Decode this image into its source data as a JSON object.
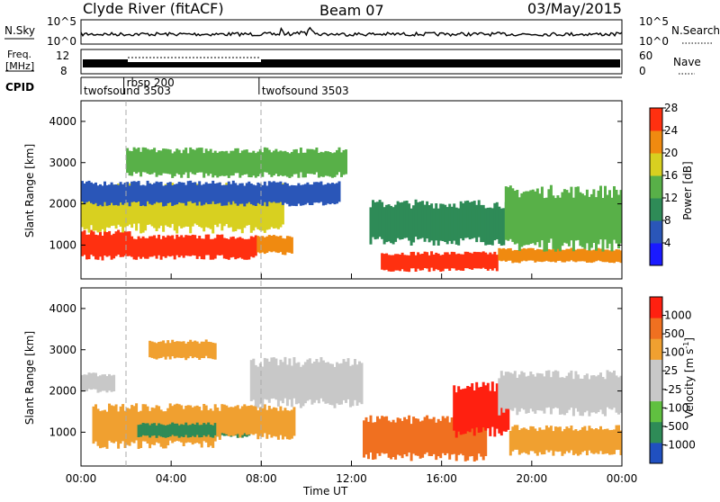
{
  "header": {
    "station": "Clyde River (fitACF)",
    "beam": "Beam 07",
    "date": "03/May/2015"
  },
  "noise_panel": {
    "left_label": "N.Sky",
    "right_label": "N.Search",
    "left_ticks": [
      "10^5",
      "10^0"
    ],
    "right_ticks": [
      "10^5",
      "10^0"
    ]
  },
  "freq_panel": {
    "left_label_top": "Freq.",
    "left_label_bottom": "[MHz]",
    "left_ticks": [
      "12",
      "8"
    ],
    "right_label": "Nave",
    "right_ticks": [
      "60",
      "0"
    ]
  },
  "cpid_panel": {
    "label": "CPID",
    "segments": [
      {
        "label": "twofsound 3503",
        "start_hour": 0,
        "end_hour": 1.9
      },
      {
        "label": "rbsp 200",
        "start_hour": 1.9,
        "end_hour": 7.9
      },
      {
        "label": "twofsound 3503",
        "start_hour": 7.9,
        "end_hour": 24
      }
    ]
  },
  "range_axis": {
    "label": "Slant Range [km]",
    "ticks": [
      "1000",
      "2000",
      "3000",
      "4000"
    ],
    "range_km": [
      180,
      4500
    ]
  },
  "time_axis": {
    "label": "Time UT",
    "ticks": [
      "00:00",
      "04:00",
      "08:00",
      "12:00",
      "16:00",
      "20:00",
      "00:00"
    ],
    "range_hours": [
      0,
      24
    ]
  },
  "power_colorbar": {
    "label": "Power [dB]",
    "ticks": [
      "4",
      "8",
      "12",
      "16",
      "20",
      "24",
      "28"
    ],
    "colors": [
      "#1a1aff",
      "#2a56b8",
      "#2e8b57",
      "#58b048",
      "#d8d020",
      "#f08a10",
      "#ff3010"
    ]
  },
  "velocity_colorbar": {
    "label": "Velocity [m s",
    "label_superscript": "-1",
    "label_close": "]",
    "ticks": [
      "1000",
      "500",
      "100",
      "25",
      "-25",
      "-100",
      "-500",
      "-1000"
    ],
    "colors": [
      "#2050c0",
      "#2e8b57",
      "#60c040",
      "#c8c8c8",
      "#c8c8c8",
      "#f0a030",
      "#f07020",
      "#ff2010"
    ]
  },
  "chart_data": {
    "type": "heatmap",
    "x_unit": "hours UT",
    "y_unit": "km",
    "power_features": [
      {
        "t0": 0,
        "t1": 2.2,
        "r0": 700,
        "r1": 1300,
        "level": 6
      },
      {
        "t0": 2.2,
        "t1": 7.8,
        "r0": 700,
        "r1": 1200,
        "level": 6
      },
      {
        "t0": 7.8,
        "t1": 9.4,
        "r0": 800,
        "r1": 1200,
        "level": 5
      },
      {
        "t0": 13.3,
        "t1": 18.5,
        "r0": 400,
        "r1": 800,
        "level": 6
      },
      {
        "t0": 18.5,
        "t1": 24,
        "r0": 600,
        "r1": 900,
        "level": 5
      },
      {
        "t0": 0,
        "t1": 9,
        "r0": 1400,
        "r1": 2400,
        "level": 4
      },
      {
        "t0": 0,
        "t1": 11.5,
        "r0": 2000,
        "r1": 2500,
        "level": 1
      },
      {
        "t0": 2,
        "t1": 11.8,
        "r0": 2700,
        "r1": 3300,
        "level": 3
      },
      {
        "t0": 12.8,
        "t1": 19,
        "r0": 1100,
        "r1": 2000,
        "level": 2
      },
      {
        "t0": 18.8,
        "t1": 24,
        "r0": 1000,
        "r1": 2300,
        "level": 3
      }
    ],
    "velocity_features": [
      {
        "t0": 0,
        "t1": 1.5,
        "r0": 2000,
        "r1": 2400,
        "level": 3
      },
      {
        "t0": 0.5,
        "t1": 6,
        "r0": 700,
        "r1": 1600,
        "level": 5
      },
      {
        "t0": 2.5,
        "t1": 7.5,
        "r0": 900,
        "r1": 1200,
        "level": 1
      },
      {
        "t0": 6,
        "t1": 9.5,
        "r0": 900,
        "r1": 1600,
        "level": 5
      },
      {
        "t0": 7.5,
        "t1": 12.5,
        "r0": 1700,
        "r1": 2700,
        "level": 3
      },
      {
        "t0": 3,
        "t1": 6,
        "r0": 2800,
        "r1": 3200,
        "level": 5
      },
      {
        "t0": 12.5,
        "t1": 18,
        "r0": 400,
        "r1": 1300,
        "level": 6
      },
      {
        "t0": 16.5,
        "t1": 19,
        "r0": 1000,
        "r1": 2100,
        "level": 7
      },
      {
        "t0": 18.5,
        "t1": 24,
        "r0": 1500,
        "r1": 2400,
        "level": 3
      },
      {
        "t0": 19,
        "t1": 24,
        "r0": 500,
        "r1": 1100,
        "level": 5
      }
    ]
  }
}
